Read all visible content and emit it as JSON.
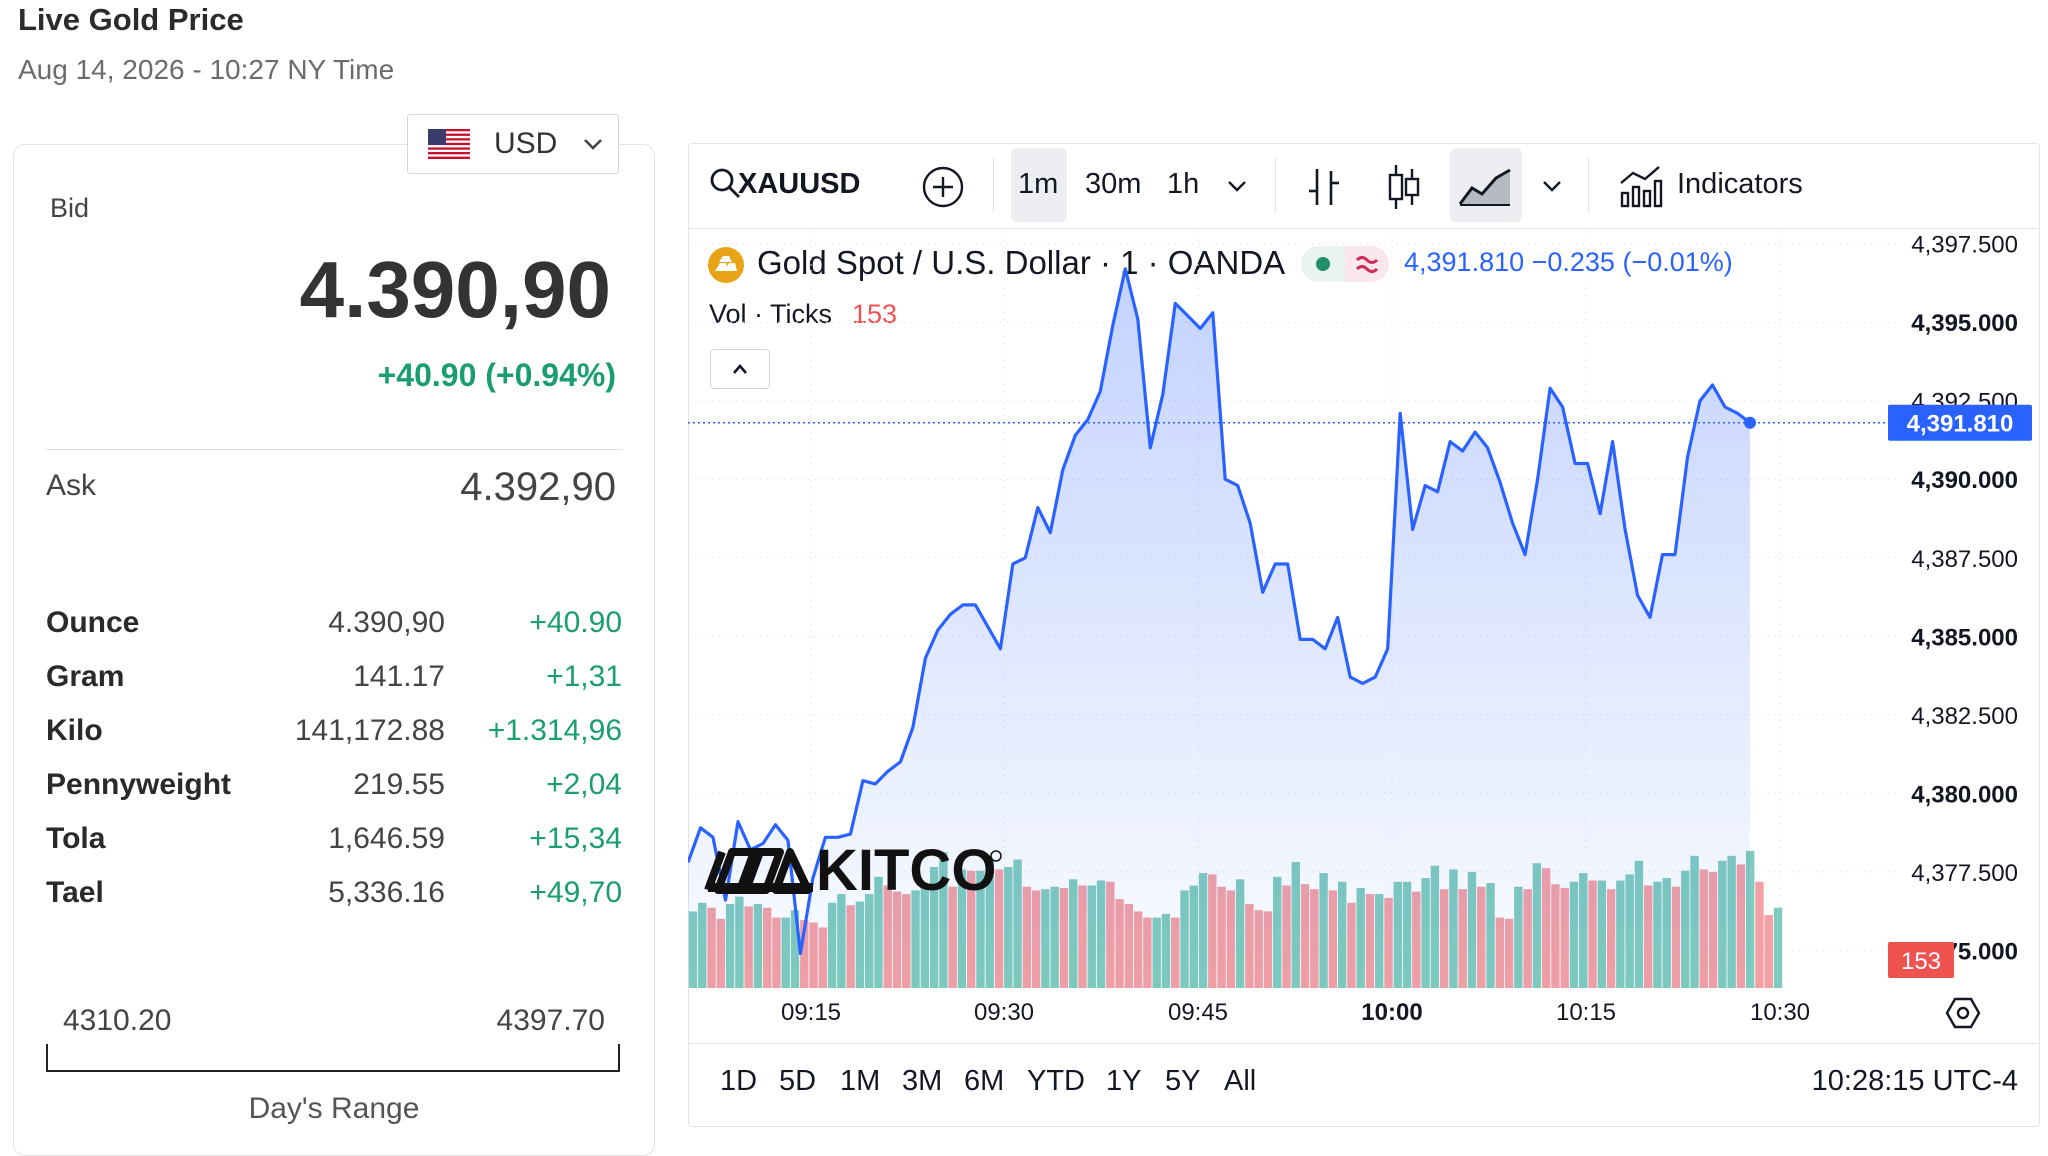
{
  "header": {
    "title": "Live Gold Price",
    "subtitle": "Aug 14, 2026 - 10:27 NY Time"
  },
  "currency": {
    "selected": "USD",
    "flag_icon": "us-flag-icon"
  },
  "quote": {
    "bid_label": "Bid",
    "bid_value": "4.390,90",
    "bid_change": "+40.90 (+0.94%)",
    "ask_label": "Ask",
    "ask_value": "4.392,90"
  },
  "units": [
    {
      "name": "Ounce",
      "price": "4.390,90",
      "change": "+40.90"
    },
    {
      "name": "Gram",
      "price": "141.17",
      "change": "+1,31"
    },
    {
      "name": "Kilo",
      "price": "141,172.88",
      "change": "+1.314,96"
    },
    {
      "name": "Pennyweight",
      "price": "219.55",
      "change": "+2,04"
    },
    {
      "name": "Tola",
      "price": "1,646.59",
      "change": "+15,34"
    },
    {
      "name": "Tael",
      "price": "5,336.16",
      "change": "+49,70"
    }
  ],
  "day_range": {
    "low": "4310.20",
    "high": "4397.70",
    "caption": "Day's Range"
  },
  "toolbar": {
    "symbol": "XAUUSD",
    "timeframes": [
      "1m",
      "30m",
      "1h"
    ],
    "active_timeframe": "1m",
    "indicators_label": "Indicators"
  },
  "legend": {
    "title": "Gold Spot / U.S. Dollar · 1 · OANDA",
    "price_info": "4,391.810  −0.235 (−0.01%)",
    "volume_label": "Vol · Ticks",
    "volume_value": "153"
  },
  "range_buttons": [
    "1D",
    "5D",
    "1M",
    "3M",
    "6M",
    "YTD",
    "1Y",
    "5Y",
    "All"
  ],
  "clock": "10:28:15 UTC-4",
  "watermark": "KITCO",
  "colors": {
    "line": "#2962ff",
    "up": "#1a9e6d",
    "vol_up": "#7fcbbd",
    "vol_down": "#f2a0a4",
    "price_tag": "#2962ff",
    "volume_tag": "#ef5350"
  },
  "chart_data": {
    "type": "area",
    "symbol": "XAUUSD",
    "series": [
      {
        "name": "Gold Spot / U.S. Dollar",
        "values": [
          4377.8,
          4378.9,
          4378.6,
          4376.6,
          4379.1,
          4378.2,
          4378.4,
          4379.0,
          4378.5,
          4374.9,
          4377.3,
          4378.6,
          4378.6,
          4378.7,
          4380.4,
          4380.3,
          4380.7,
          4381.0,
          4382.1,
          4384.3,
          4385.2,
          4385.7,
          4386.0,
          4386.0,
          4385.3,
          4384.6,
          4387.3,
          4387.5,
          4389.1,
          4388.3,
          4390.3,
          4391.4,
          4391.9,
          4392.8,
          4394.9,
          4396.7,
          4395.1,
          4391.0,
          4392.7,
          4395.6,
          4395.2,
          4394.8,
          4395.3,
          4390.0,
          4389.8,
          4388.6,
          4386.4,
          4387.3,
          4387.3,
          4384.9,
          4384.9,
          4384.6,
          4385.6,
          4383.7,
          4383.5,
          4383.7,
          4384.6,
          4392.1,
          4388.4,
          4389.8,
          4389.6,
          4391.2,
          4390.9,
          4391.5,
          4391.0,
          4389.9,
          4388.6,
          4387.6,
          4390.0,
          4392.9,
          4392.3,
          4390.5,
          4390.5,
          4388.9,
          4391.2,
          4388.4,
          4386.3,
          4385.6,
          4387.6,
          4387.6,
          4390.7,
          4392.5,
          4393.0,
          4392.3,
          4392.1,
          4391.8
        ]
      }
    ],
    "volume": [
      62,
      69,
      65,
      56,
      68,
      74,
      66,
      68,
      65,
      57,
      57,
      63,
      55,
      53,
      49,
      69,
      76,
      67,
      70,
      76,
      90,
      83,
      78,
      76,
      79,
      82,
      98,
      110,
      82,
      96,
      95,
      95,
      104,
      96,
      98,
      104,
      82,
      79,
      80,
      82,
      81,
      88,
      83,
      83,
      87,
      86,
      72,
      68,
      62,
      57,
      57,
      60,
      57,
      79,
      83,
      93,
      92,
      82,
      79,
      88,
      68,
      63,
      62,
      90,
      83,
      102,
      84,
      80,
      93,
      79,
      86,
      69,
      81,
      76,
      76,
      73,
      86,
      86,
      78,
      89,
      99,
      80,
      96,
      80,
      94,
      82,
      85,
      57,
      56,
      82,
      80,
      101,
      97,
      84,
      81,
      86,
      93,
      87,
      87,
      80,
      87,
      92,
      103,
      83,
      86,
      89,
      82,
      95,
      107,
      96,
      94,
      103,
      107,
      100,
      111,
      86,
      59,
      65
    ],
    "volume_max_ticks": 153,
    "y_axis_ticks": [
      "4,397.500",
      "4,395.000",
      "4,392.500",
      "4,390.000",
      "4,387.500",
      "4,385.000",
      "4,382.500",
      "4,380.000",
      "4,377.500",
      "4,375.000"
    ],
    "x_axis_ticks": [
      "09:15",
      "09:30",
      "09:45",
      "10:00",
      "10:15",
      "10:30"
    ],
    "ylim": [
      4373.8,
      4398.0
    ],
    "last_price": "4,391.810",
    "last_volume": "153",
    "grid": true
  }
}
